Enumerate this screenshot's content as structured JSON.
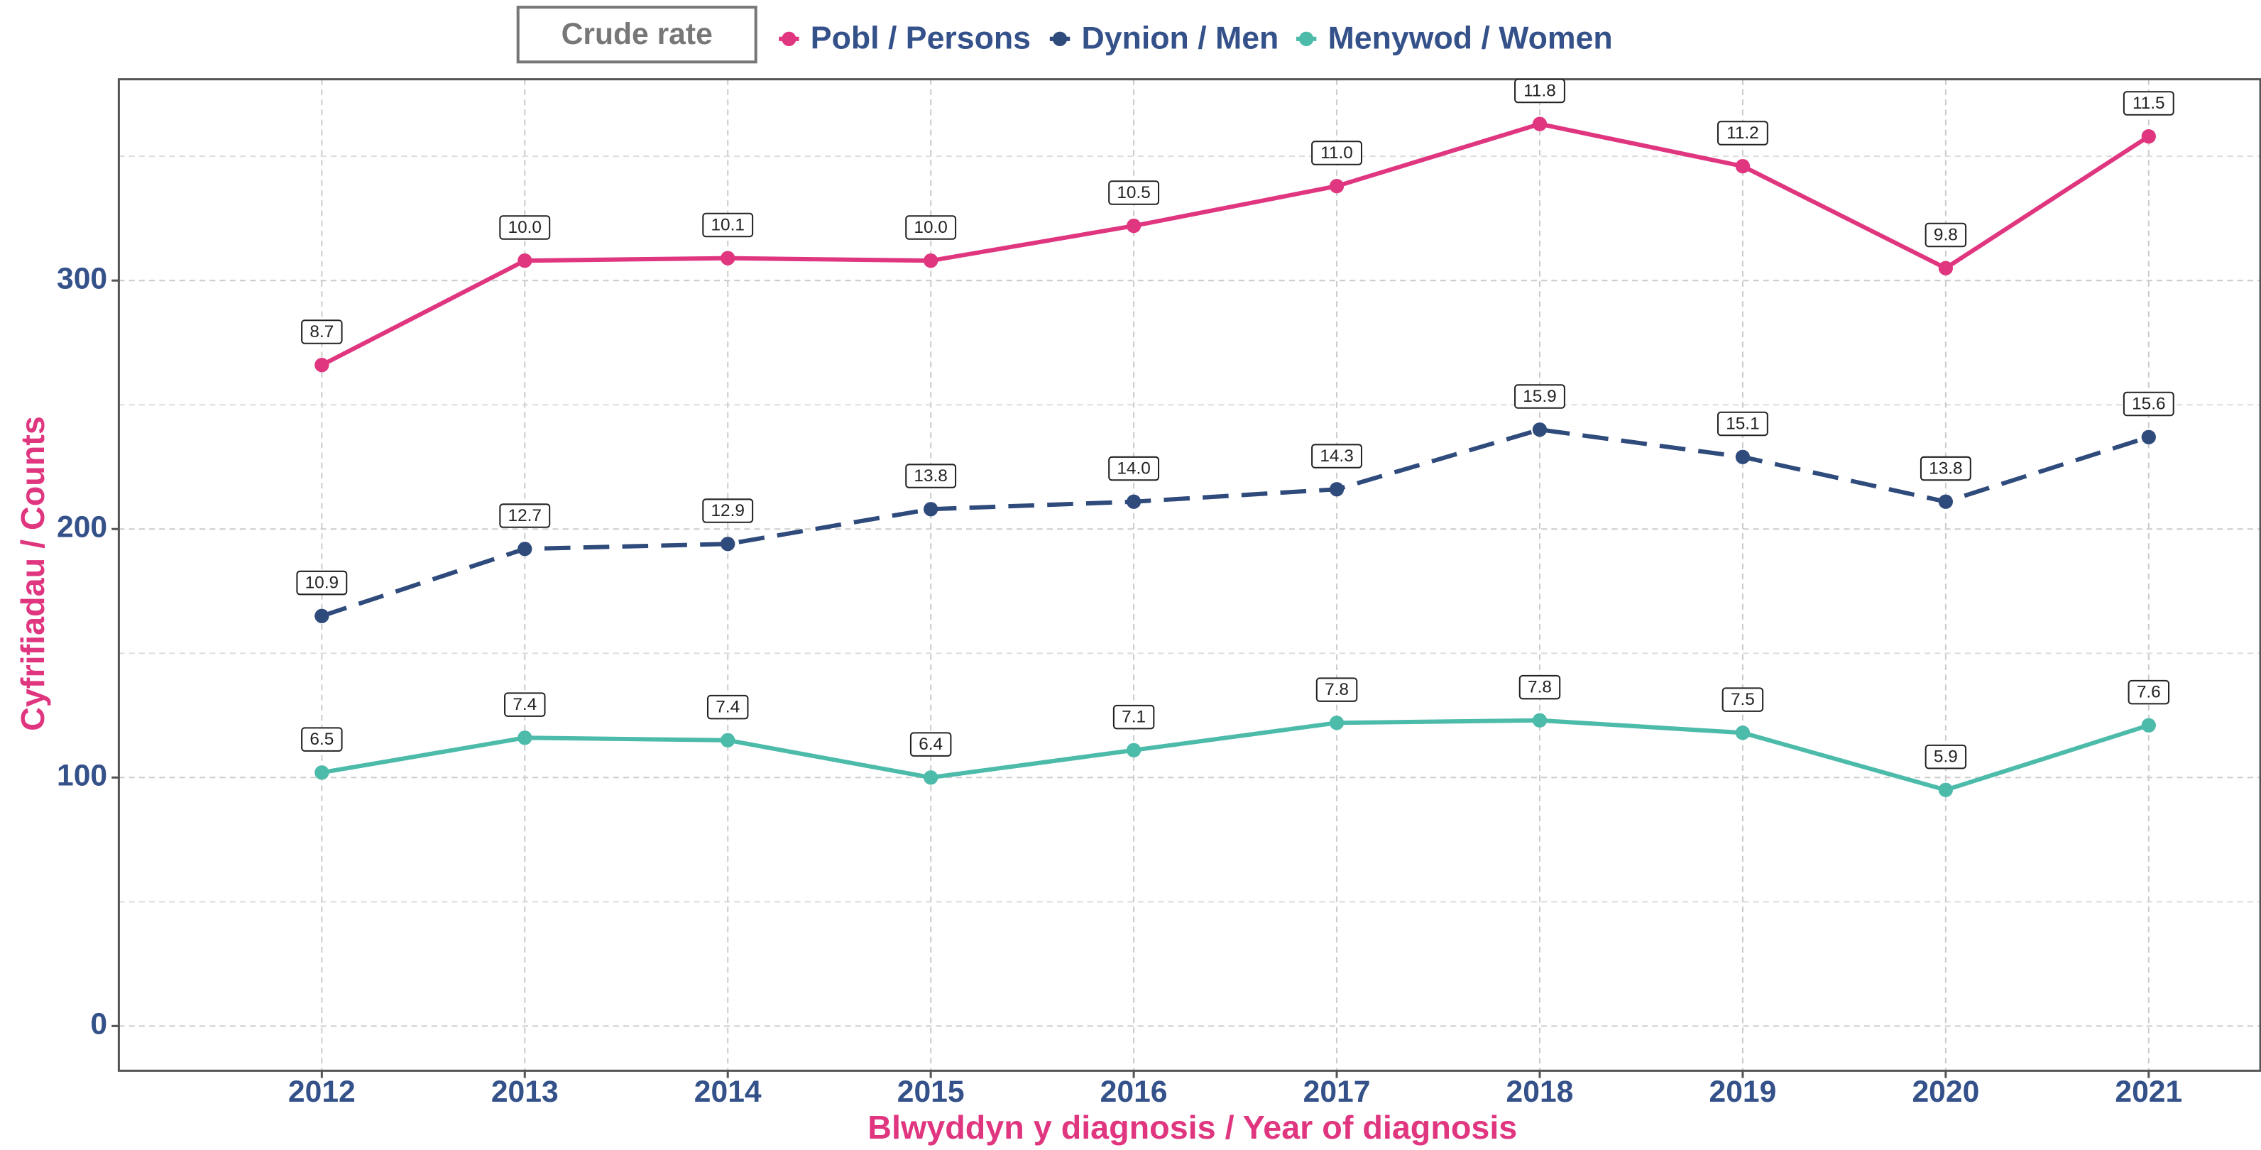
{
  "chart_data": {
    "type": "line",
    "x_label": "Blwyddyn y diagnosis / Year of diagnosis",
    "y_label": "Cyfrifiadau / Counts",
    "legend_title": "Crude rate",
    "x": [
      2012,
      2013,
      2014,
      2015,
      2016,
      2017,
      2018,
      2019,
      2020,
      2021
    ],
    "xlim": [
      2011,
      2021.55
    ],
    "xticks": [
      2012,
      2013,
      2014,
      2015,
      2016,
      2017,
      2018,
      2019,
      2020,
      2021
    ],
    "ylim": [
      -18,
      381
    ],
    "yticks": [
      0,
      100,
      200,
      300
    ],
    "yminor": [
      50,
      150,
      250,
      350
    ],
    "grid": true,
    "legend": "top",
    "series": [
      {
        "name": "Pobl / Persons",
        "color": "#e0357f",
        "linestyle": "solid",
        "values": [
          266,
          308,
          309,
          308,
          322,
          338,
          363,
          346,
          305,
          358
        ],
        "labels": [
          "8.7",
          "10.0",
          "10.1",
          "10.0",
          "10.5",
          "11.0",
          "11.8",
          "11.2",
          "9.8",
          "11.5"
        ]
      },
      {
        "name": "Dynion / Men",
        "color": "#2f4b7c",
        "linestyle": "dashed",
        "values": [
          165,
          192,
          194,
          208,
          211,
          216,
          240,
          229,
          211,
          237
        ],
        "labels": [
          "10.9",
          "12.7",
          "12.9",
          "13.8",
          "14.0",
          "14.3",
          "15.9",
          "15.1",
          "13.8",
          "15.6"
        ]
      },
      {
        "name": "Menywod / Women",
        "color": "#4dbbaa",
        "linestyle": "solid",
        "values": [
          102,
          116,
          115,
          100,
          111,
          122,
          123,
          118,
          95,
          121
        ],
        "labels": [
          "6.5",
          "7.4",
          "7.4",
          "6.4",
          "7.1",
          "7.8",
          "7.8",
          "7.5",
          "5.9",
          "7.6"
        ]
      }
    ]
  }
}
